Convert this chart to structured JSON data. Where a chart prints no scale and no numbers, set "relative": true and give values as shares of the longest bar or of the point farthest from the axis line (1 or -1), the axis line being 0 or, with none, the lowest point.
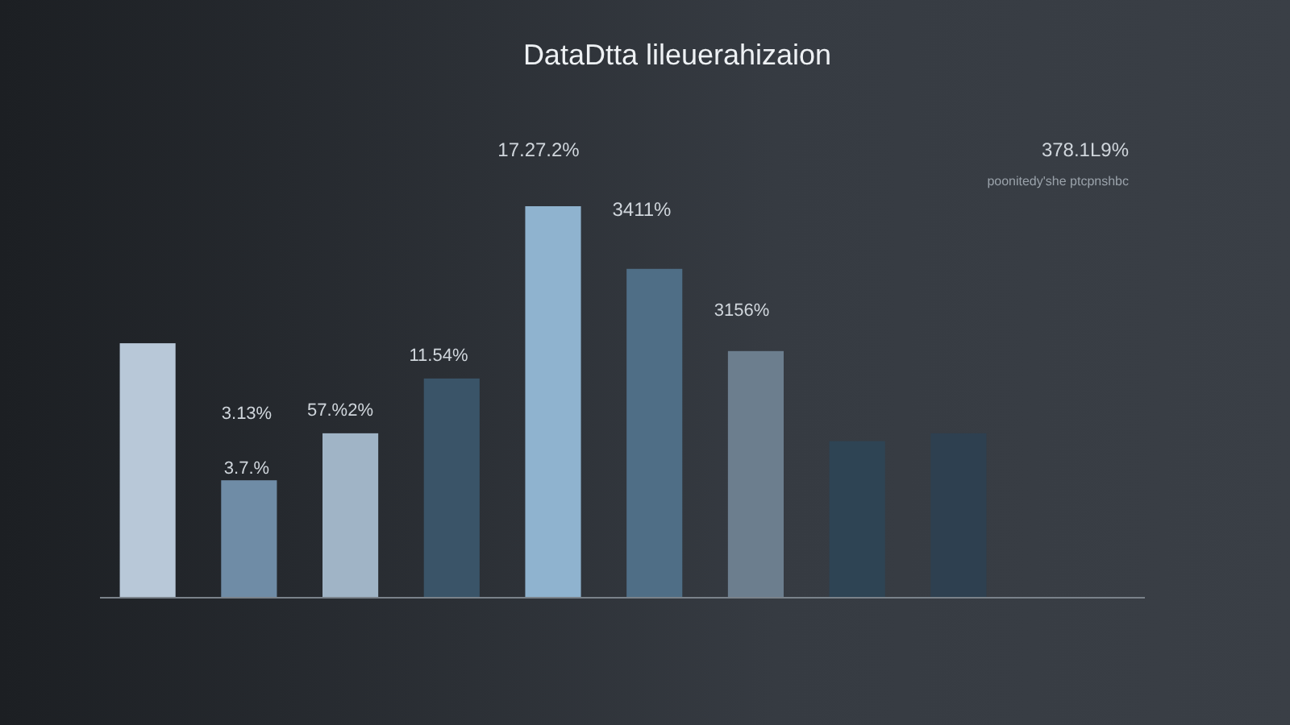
{
  "chart_data": {
    "type": "bar",
    "title": "DataDtta lileuerahizaion",
    "relative": true,
    "categories": [
      null,
      null,
      null,
      null,
      null,
      null,
      null,
      null,
      null
    ],
    "values": [
      0.65,
      0.3,
      0.42,
      0.56,
      1,
      0.84,
      0.63,
      0.4,
      0.42
    ],
    "colors": [
      "#b8c8d8",
      "#6f8ca6",
      "#a0b4c6",
      "#3a5468",
      "#8fb3cf",
      "#4f6e86",
      "#6c7e8e",
      "#2e4454",
      "#2e4050"
    ],
    "annotations": [
      "3.13%",
      "3.7.%",
      "57.%2%",
      "11.54%",
      "17.27.2%",
      "3411%",
      "3156%",
      "378.1L9%",
      "poonitedy'she ptcpnshbc"
    ]
  }
}
